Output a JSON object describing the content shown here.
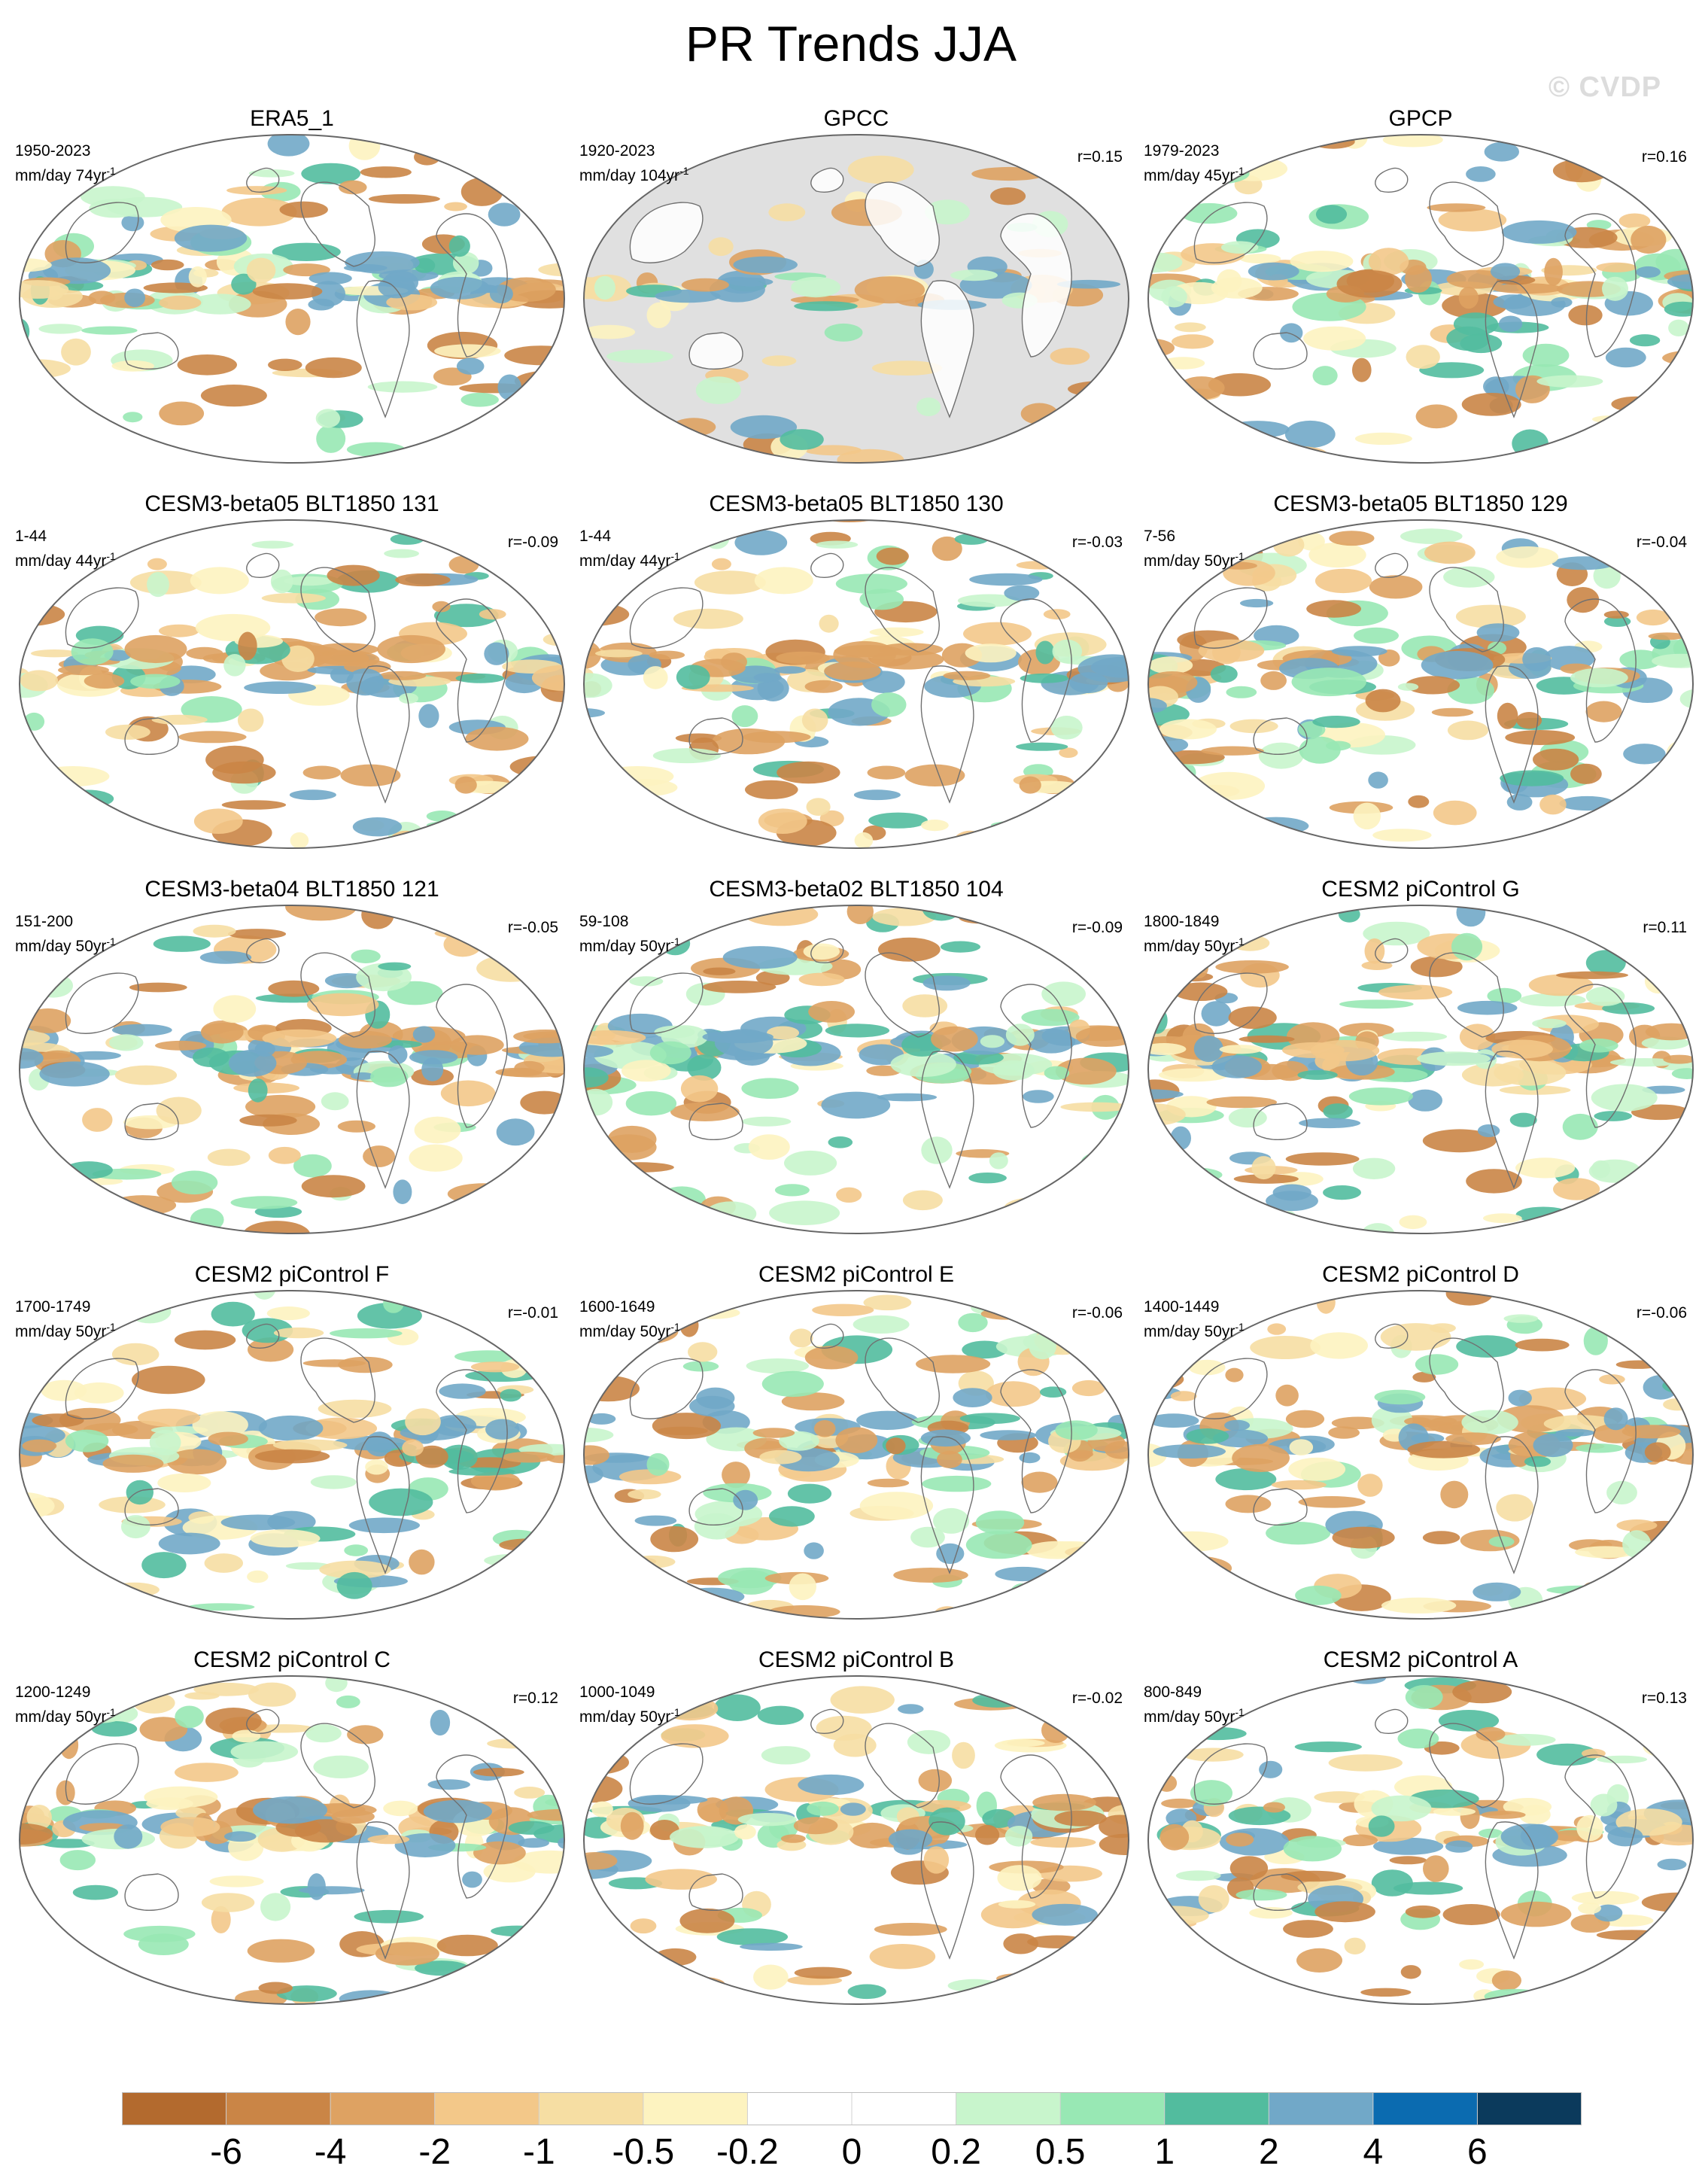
{
  "title": "PR Trends JJA",
  "watermark": "© CVDP",
  "panels": [
    {
      "title": "ERA5_1",
      "period": "1950-2023",
      "units": "mm/day 74yr",
      "units_sup": "-1",
      "corr": "",
      "land_mask": false
    },
    {
      "title": "GPCC",
      "period": "1920-2023",
      "units": "mm/day 104yr",
      "units_sup": "-1",
      "corr": "r=0.15",
      "land_mask": true
    },
    {
      "title": "GPCP",
      "period": "1979-2023",
      "units": "mm/day 45yr",
      "units_sup": "-1",
      "corr": "r=0.16",
      "land_mask": false
    },
    {
      "title": "CESM3-beta05 BLT1850 131",
      "period": "1-44",
      "units": "mm/day 44yr",
      "units_sup": "-1",
      "corr": "r=-0.09",
      "land_mask": false
    },
    {
      "title": "CESM3-beta05 BLT1850 130",
      "period": "1-44",
      "units": "mm/day 44yr",
      "units_sup": "-1",
      "corr": "r=-0.03",
      "land_mask": false
    },
    {
      "title": "CESM3-beta05 BLT1850 129",
      "period": "7-56",
      "units": "mm/day 50yr",
      "units_sup": "-1",
      "corr": "r=-0.04",
      "land_mask": false
    },
    {
      "title": "CESM3-beta04 BLT1850 121",
      "period": "151-200",
      "units": "mm/day 50yr",
      "units_sup": "-1",
      "corr": "r=-0.05",
      "land_mask": false
    },
    {
      "title": "CESM3-beta02 BLT1850 104",
      "period": "59-108",
      "units": "mm/day 50yr",
      "units_sup": "-1",
      "corr": "r=-0.09",
      "land_mask": false
    },
    {
      "title": "CESM2 piControl G",
      "period": "1800-1849",
      "units": "mm/day 50yr",
      "units_sup": "-1",
      "corr": "r=0.11",
      "land_mask": false
    },
    {
      "title": "CESM2 piControl F",
      "period": "1700-1749",
      "units": "mm/day 50yr",
      "units_sup": "-1",
      "corr": "r=-0.01",
      "land_mask": false
    },
    {
      "title": "CESM2 piControl E",
      "period": "1600-1649",
      "units": "mm/day 50yr",
      "units_sup": "-1",
      "corr": "r=-0.06",
      "land_mask": false
    },
    {
      "title": "CESM2 piControl D",
      "period": "1400-1449",
      "units": "mm/day 50yr",
      "units_sup": "-1",
      "corr": "r=-0.06",
      "land_mask": false
    },
    {
      "title": "CESM2 piControl C",
      "period": "1200-1249",
      "units": "mm/day 50yr",
      "units_sup": "-1",
      "corr": "r=0.12",
      "land_mask": false
    },
    {
      "title": "CESM2 piControl B",
      "period": "1000-1049",
      "units": "mm/day 50yr",
      "units_sup": "-1",
      "corr": "r=-0.02",
      "land_mask": false
    },
    {
      "title": "CESM2 piControl A",
      "period": "800-849",
      "units": "mm/day 50yr",
      "units_sup": "-1",
      "corr": "r=0.13",
      "land_mask": false
    }
  ],
  "colorbar": {
    "colors": [
      "#b36a2e",
      "#ca8546",
      "#dea262",
      "#f3c889",
      "#f6dea3",
      "#fdf3c0",
      "#ffffff",
      "#ffffff",
      "#c8f5cc",
      "#98e8b4",
      "#52bc9e",
      "#71a8c8",
      "#0b6bb0",
      "#0b3a5c"
    ],
    "labels": [
      "-6",
      "-4",
      "-2",
      "-1",
      "-0.5",
      "-0.2",
      "0",
      "0.2",
      "0.5",
      "1",
      "2",
      "4",
      "6"
    ]
  }
}
